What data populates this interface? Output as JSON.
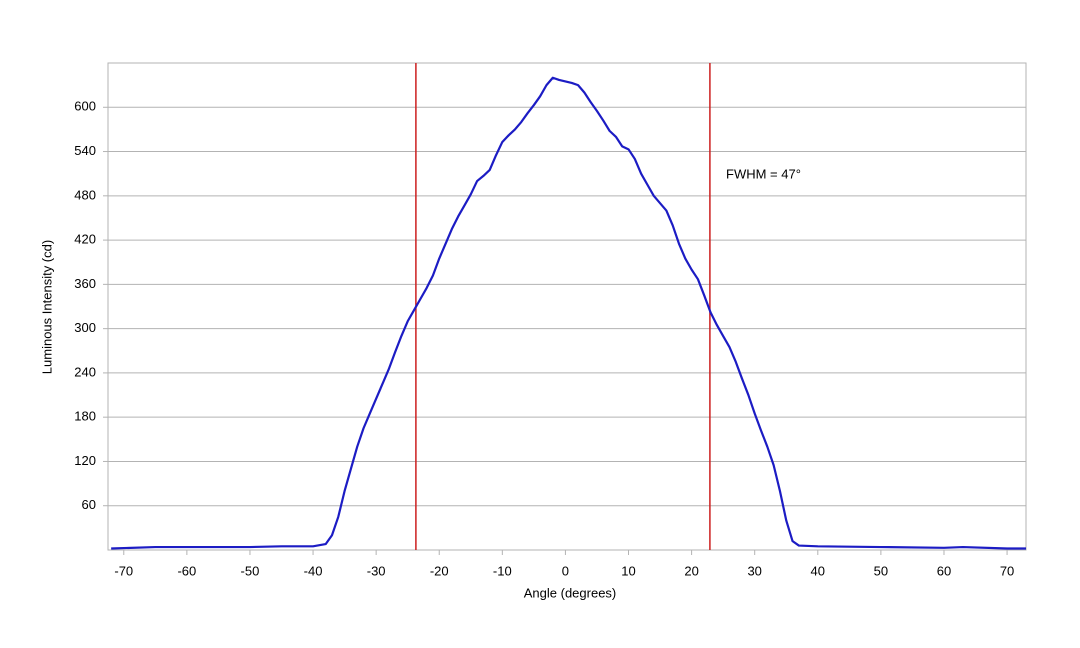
{
  "chart_data": {
    "type": "line",
    "x_label": "Angle (degrees)",
    "y_label": "Luminous Intensity (cd)",
    "annotation": "FWHM = 47°",
    "x": [
      -72,
      -65,
      -60,
      -50,
      -45,
      -40,
      -38,
      -37,
      -36,
      -35,
      -34,
      -33,
      -32,
      -31,
      -30,
      -29,
      -28,
      -27,
      -26,
      -25,
      -24,
      -23,
      -22,
      -21,
      -20,
      -19,
      -18,
      -17,
      -16,
      -15,
      -14,
      -13,
      -12,
      -11,
      -10,
      -9,
      -8,
      -7,
      -6,
      -5,
      -4,
      -3,
      -2,
      -1,
      0,
      1,
      2,
      3,
      4,
      5,
      6,
      7,
      8,
      9,
      10,
      11,
      12,
      13,
      14,
      15,
      16,
      17,
      18,
      19,
      20,
      21,
      22,
      23,
      24,
      25,
      26,
      27,
      28,
      29,
      30,
      31,
      32,
      33,
      34,
      35,
      36,
      37,
      40,
      50,
      60,
      63,
      70,
      73
    ],
    "values": [
      2,
      4,
      4,
      4,
      5,
      5,
      8,
      20,
      45,
      80,
      110,
      140,
      165,
      185,
      205,
      225,
      245,
      268,
      290,
      310,
      325,
      340,
      355,
      372,
      395,
      415,
      435,
      452,
      467,
      482,
      500,
      507,
      515,
      535,
      553,
      562,
      570,
      580,
      592,
      603,
      615,
      630,
      640,
      637,
      635,
      633,
      630,
      620,
      607,
      595,
      582,
      568,
      560,
      547,
      543,
      530,
      510,
      495,
      480,
      470,
      460,
      440,
      415,
      395,
      380,
      367,
      345,
      322,
      305,
      290,
      275,
      255,
      232,
      210,
      185,
      162,
      140,
      115,
      80,
      40,
      12,
      6,
      5,
      4,
      3,
      4,
      2,
      2
    ],
    "color": "#1c1cc4",
    "reference_lines": [
      {
        "x": -23.7,
        "color": "#cc1f1f"
      },
      {
        "x": 22.9,
        "color": "#cc1f1f"
      }
    ],
    "xlim": [
      -72.5,
      73
    ],
    "xticks": [
      -70,
      -60,
      -50,
      -40,
      -30,
      -20,
      -10,
      0,
      10,
      20,
      30,
      40,
      50,
      60,
      70
    ],
    "ylim": [
      0,
      660
    ],
    "yticks": [
      60,
      120,
      180,
      240,
      300,
      360,
      420,
      480,
      540,
      600
    ],
    "grid": true
  }
}
